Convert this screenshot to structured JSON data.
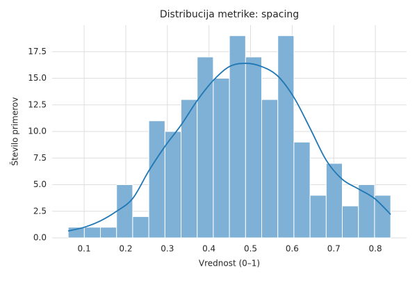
{
  "chart_data": {
    "type": "histogram",
    "title": "Distribucija metrike: spacing",
    "xlabel": "Vrednost (0–1)",
    "ylabel": "Število primerov",
    "bins": [
      0.0616,
      0.1004,
      0.1391,
      0.1779,
      0.2166,
      0.2554,
      0.2942,
      0.3329,
      0.3717,
      0.4104,
      0.4492,
      0.488,
      0.5267,
      0.5655,
      0.6042,
      0.643,
      0.6818,
      0.7205,
      0.7593,
      0.798,
      0.8368
    ],
    "counts": [
      1,
      1,
      1,
      5,
      2,
      11,
      10,
      13,
      17,
      15,
      19,
      17,
      13,
      19,
      9,
      4,
      7,
      3,
      5,
      4
    ],
    "color": "#7fb0d5",
    "kde": {
      "color": "#1f77b4",
      "x": [
        0.0616,
        0.1004,
        0.1391,
        0.1779,
        0.2166,
        0.2554,
        0.2942,
        0.3329,
        0.3717,
        0.4104,
        0.4492,
        0.488,
        0.5267,
        0.5655,
        0.6042,
        0.643,
        0.6818,
        0.7205,
        0.7593,
        0.798,
        0.8368
      ],
      "y": [
        0.65,
        1.0,
        1.6,
        2.5,
        3.7,
        6.3,
        8.6,
        10.6,
        12.9,
        14.8,
        16.1,
        16.4,
        16.1,
        15.2,
        13.2,
        10.3,
        7.3,
        5.5,
        4.6,
        3.7,
        2.2
      ]
    },
    "xlim": [
      0.023,
      0.875
    ],
    "ylim": [
      0,
      20
    ],
    "xticks": [
      0.1,
      0.2,
      0.3,
      0.4,
      0.5,
      0.6,
      0.7,
      0.8
    ],
    "yticks": [
      {
        "value": 0,
        "label": "0.0"
      },
      {
        "value": 2.5,
        "label": "2.5"
      },
      {
        "value": 5,
        "label": "5.0"
      },
      {
        "value": 7.5,
        "label": "7.5"
      },
      {
        "value": 10,
        "label": "10.0"
      },
      {
        "value": 12.5,
        "label": "12.5"
      },
      {
        "value": 15,
        "label": "15.0"
      },
      {
        "value": 17.5,
        "label": "17.5"
      }
    ],
    "grid": true
  }
}
